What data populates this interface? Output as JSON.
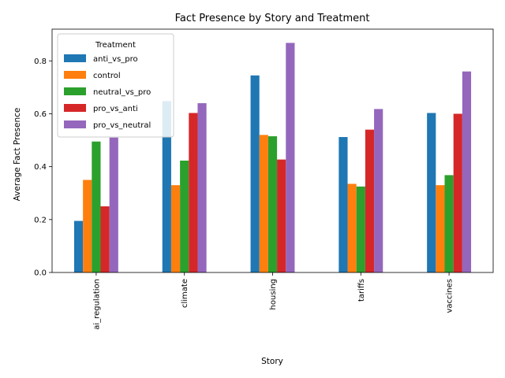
{
  "chart_data": {
    "type": "bar",
    "title": "Fact Presence by Story and Treatment",
    "xlabel": "Story",
    "ylabel": "Average Fact Presence",
    "ylim": [
      0,
      0.92
    ],
    "yticks": [
      "0.0",
      "0.2",
      "0.4",
      "0.6",
      "0.8"
    ],
    "categories": [
      "ai_regulation",
      "climate",
      "housing",
      "tariffs",
      "vaccines"
    ],
    "legend_title": "Treatment",
    "legend_position": "top-left",
    "grid": false,
    "series": [
      {
        "name": "anti_vs_pro",
        "color": "#1f77b4",
        "values": [
          0.195,
          0.648,
          0.745,
          0.512,
          0.603
        ]
      },
      {
        "name": "control",
        "color": "#ff7f0e",
        "values": [
          0.35,
          0.33,
          0.52,
          0.335,
          0.33
        ]
      },
      {
        "name": "neutral_vs_pro",
        "color": "#2ca02c",
        "values": [
          0.495,
          0.423,
          0.515,
          0.325,
          0.368
        ]
      },
      {
        "name": "pro_vs_anti",
        "color": "#d62728",
        "values": [
          0.25,
          0.603,
          0.427,
          0.54,
          0.6
        ]
      },
      {
        "name": "pro_vs_neutral",
        "color": "#9467bd",
        "values": [
          0.51,
          0.64,
          0.868,
          0.618,
          0.76
        ]
      }
    ]
  }
}
